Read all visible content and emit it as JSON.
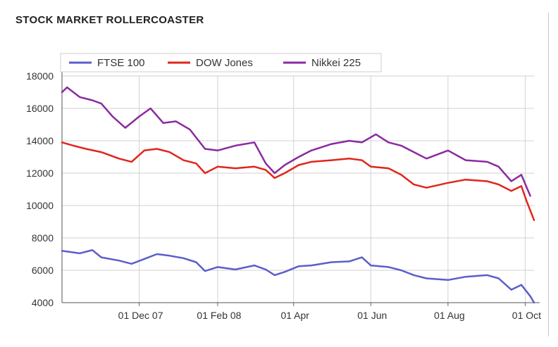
{
  "page_title": "STOCK MARKET ROLLERCOASTER",
  "chart_data": {
    "type": "line",
    "title": "STOCK MARKET ROLLERCOASTER",
    "xlabel": "",
    "ylabel": "",
    "ylim": [
      4000,
      18000
    ],
    "xlim": [
      "2007-10-01",
      "2008-10-08"
    ],
    "grid": true,
    "legend_position": "top-left",
    "x_ticks": [
      "01 Dec 07",
      "01 Feb 08",
      "01 Apr",
      "01 Jun",
      "01 Aug",
      "01 Oct"
    ],
    "x_tick_dates": [
      "2007-12-01",
      "2008-02-01",
      "2008-04-01",
      "2008-06-01",
      "2008-08-01",
      "2008-10-01"
    ],
    "y_ticks": [
      4000,
      6000,
      8000,
      10000,
      12000,
      14000,
      16000,
      18000
    ],
    "series": [
      {
        "name": "FTSE 100",
        "color": "#5a5fc9",
        "x": [
          "2007-10-01",
          "2007-10-15",
          "2007-10-25",
          "2007-11-01",
          "2007-11-15",
          "2007-11-25",
          "2007-12-05",
          "2007-12-15",
          "2007-12-25",
          "2008-01-05",
          "2008-01-15",
          "2008-01-22",
          "2008-02-01",
          "2008-02-15",
          "2008-03-01",
          "2008-03-10",
          "2008-03-17",
          "2008-03-25",
          "2008-04-05",
          "2008-04-15",
          "2008-05-01",
          "2008-05-15",
          "2008-05-25",
          "2008-06-01",
          "2008-06-15",
          "2008-06-25",
          "2008-07-05",
          "2008-07-15",
          "2008-08-01",
          "2008-08-15",
          "2008-09-01",
          "2008-09-10",
          "2008-09-20",
          "2008-09-28",
          "2008-10-05",
          "2008-10-08"
        ],
        "values": [
          7200,
          7050,
          7250,
          6800,
          6600,
          6400,
          6700,
          7000,
          6900,
          6750,
          6500,
          5950,
          6200,
          6050,
          6300,
          6050,
          5700,
          5900,
          6250,
          6300,
          6500,
          6550,
          6800,
          6300,
          6200,
          6000,
          5700,
          5500,
          5400,
          5600,
          5700,
          5500,
          4800,
          5100,
          4400,
          4000
        ]
      },
      {
        "name": "DOW Jones",
        "color": "#e0261b",
        "x": [
          "2007-10-01",
          "2007-10-10",
          "2007-10-20",
          "2007-11-01",
          "2007-11-15",
          "2007-11-25",
          "2007-12-05",
          "2007-12-15",
          "2007-12-25",
          "2008-01-05",
          "2008-01-15",
          "2008-01-22",
          "2008-02-01",
          "2008-02-15",
          "2008-03-01",
          "2008-03-10",
          "2008-03-17",
          "2008-03-25",
          "2008-04-05",
          "2008-04-15",
          "2008-05-01",
          "2008-05-15",
          "2008-05-25",
          "2008-06-01",
          "2008-06-15",
          "2008-06-25",
          "2008-07-05",
          "2008-07-15",
          "2008-08-01",
          "2008-08-15",
          "2008-09-01",
          "2008-09-10",
          "2008-09-20",
          "2008-09-28",
          "2008-10-02",
          "2008-10-08"
        ],
        "values": [
          13900,
          13700,
          13500,
          13300,
          12900,
          12700,
          13400,
          13500,
          13300,
          12800,
          12600,
          12000,
          12400,
          12300,
          12400,
          12200,
          11700,
          12000,
          12500,
          12700,
          12800,
          12900,
          12800,
          12400,
          12300,
          11900,
          11300,
          11100,
          11400,
          11600,
          11500,
          11300,
          10900,
          11200,
          10300,
          9100
        ]
      },
      {
        "name": "Nikkei 225",
        "color": "#8a2aa0",
        "x": [
          "2007-10-01",
          "2007-10-05",
          "2007-10-15",
          "2007-10-25",
          "2007-11-01",
          "2007-11-10",
          "2007-11-20",
          "2007-12-01",
          "2007-12-10",
          "2007-12-20",
          "2007-12-30",
          "2008-01-10",
          "2008-01-22",
          "2008-02-01",
          "2008-02-15",
          "2008-03-01",
          "2008-03-10",
          "2008-03-17",
          "2008-03-25",
          "2008-04-05",
          "2008-04-15",
          "2008-05-01",
          "2008-05-15",
          "2008-05-25",
          "2008-06-05",
          "2008-06-15",
          "2008-06-25",
          "2008-07-05",
          "2008-07-15",
          "2008-08-01",
          "2008-08-15",
          "2008-09-01",
          "2008-09-10",
          "2008-09-20",
          "2008-09-28",
          "2008-10-05"
        ],
        "values": [
          17000,
          17300,
          16700,
          16500,
          16300,
          15500,
          14800,
          15500,
          16000,
          15100,
          15200,
          14700,
          13500,
          13400,
          13700,
          13900,
          12600,
          12000,
          12500,
          13000,
          13400,
          13800,
          14000,
          13900,
          14400,
          13900,
          13700,
          13300,
          12900,
          13400,
          12800,
          12700,
          12400,
          11500,
          11900,
          10600
        ]
      }
    ]
  }
}
